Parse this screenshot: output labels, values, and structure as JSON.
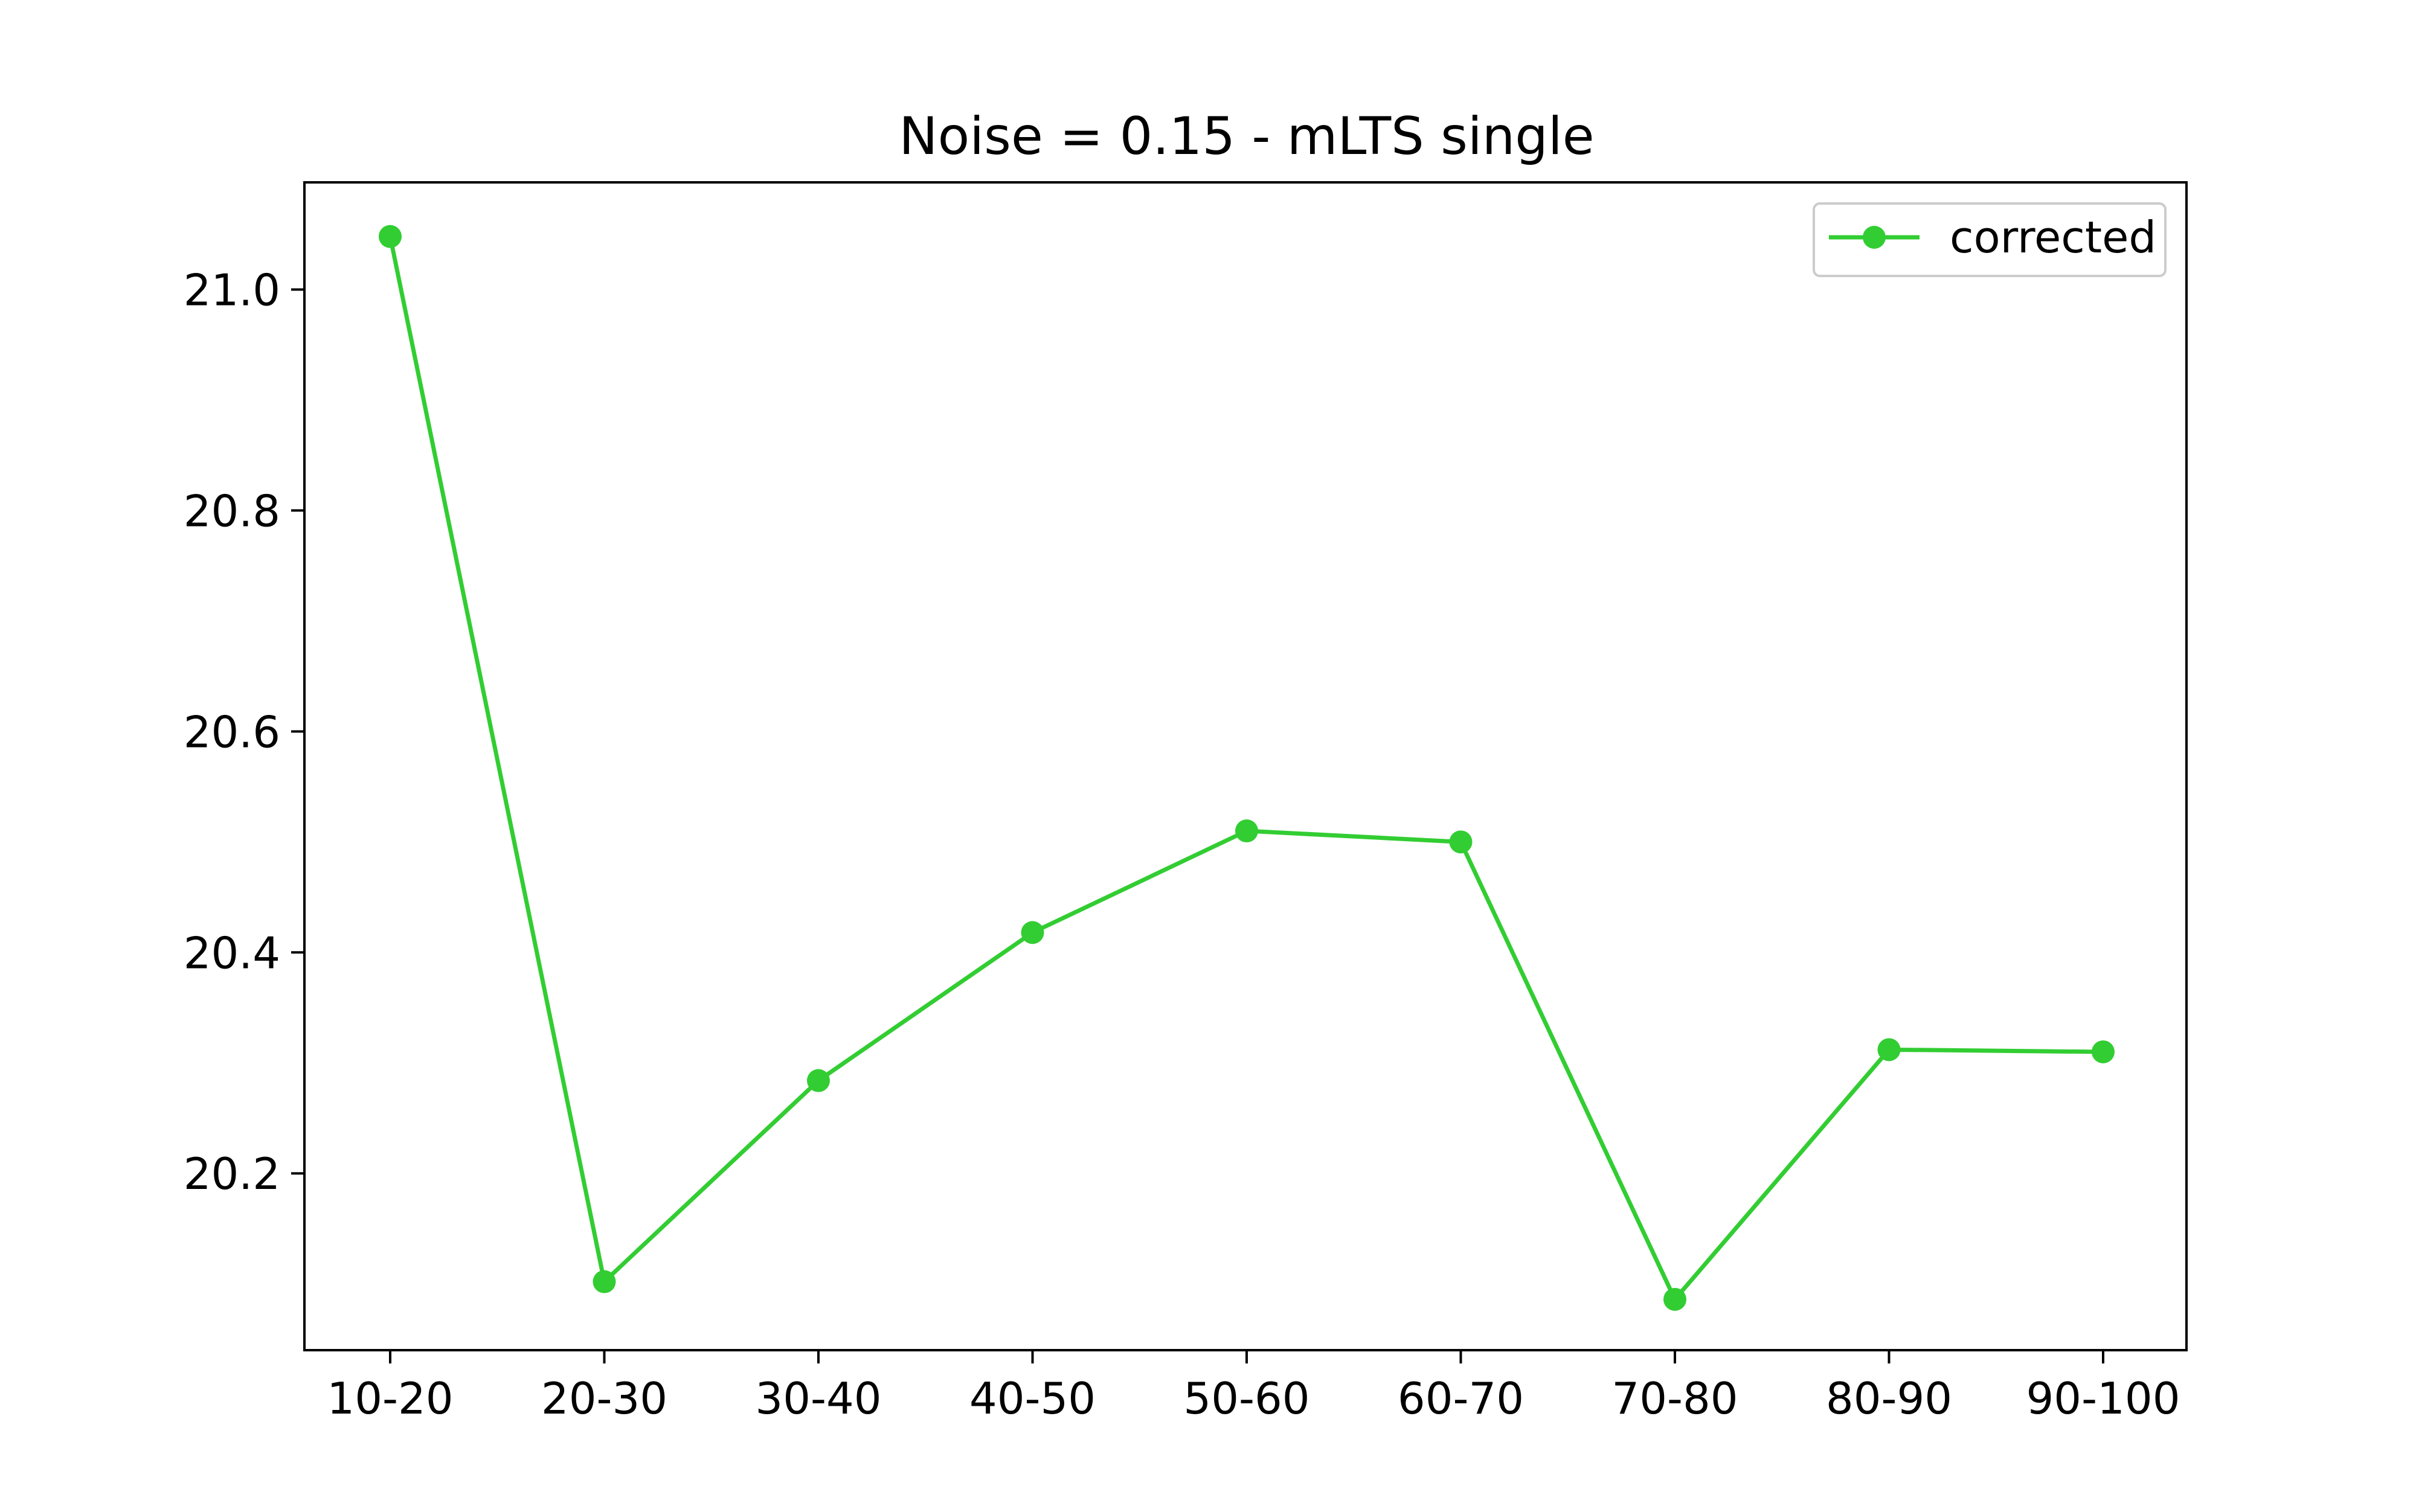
{
  "chart_data": {
    "type": "line",
    "title": "Noise = 0.15 - mLTS single",
    "xlabel": "",
    "ylabel": "",
    "categories": [
      "10-20",
      "20-30",
      "30-40",
      "40-50",
      "50-60",
      "60-70",
      "70-80",
      "80-90",
      "90-100"
    ],
    "series": [
      {
        "name": "corrected",
        "color": "#32cd32",
        "marker": "circle",
        "values": [
          21.048,
          20.102,
          20.284,
          20.418,
          20.51,
          20.5,
          20.086,
          20.312,
          20.31
        ]
      }
    ],
    "ylim": [
      20.04,
      21.097
    ],
    "yticks": [
      "20.2",
      "20.4",
      "20.6",
      "20.8",
      "21.0"
    ],
    "grid": false,
    "legend": "top-right"
  }
}
